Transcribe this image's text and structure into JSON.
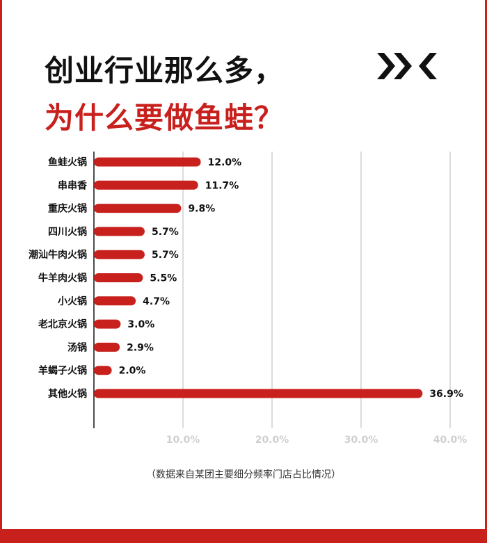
{
  "header": {
    "title_line1": "创业行业那么多，",
    "title_line2": "为什么要做鱼蛙？",
    "logo_icon": "double-chevron-logo-icon"
  },
  "colors": {
    "accent": "#c8201d",
    "grid": "#b8b8b8",
    "tick": "#cfcfcf"
  },
  "chart_data": {
    "type": "bar",
    "orientation": "horizontal",
    "categories": [
      "鱼蛙火锅",
      "串串香",
      "重庆火锅",
      "四川火锅",
      "潮汕牛肉火锅",
      "牛羊肉火锅",
      "小火锅",
      "老北京火锅",
      "汤锅",
      "羊蝎子火锅",
      "其他火锅"
    ],
    "values": [
      12.0,
      11.7,
      9.8,
      5.7,
      5.7,
      5.5,
      4.7,
      3.0,
      2.9,
      2.0,
      36.9
    ],
    "value_labels": [
      "12.0%",
      "11.7%",
      "9.8%",
      "5.7%",
      "5.7%",
      "5.5%",
      "4.7%",
      "3.0%",
      "2.9%",
      "2.0%",
      "36.9%"
    ],
    "xlim": [
      0,
      40
    ],
    "xticks": [
      10,
      20,
      30,
      40
    ],
    "xtick_labels": [
      "10.0%",
      "20.0%",
      "30.0%",
      "40.0%"
    ],
    "grid": true,
    "bar_color": "#c8201d"
  },
  "footnote": "（数据来自某团主要细分频率门店占比情况）"
}
